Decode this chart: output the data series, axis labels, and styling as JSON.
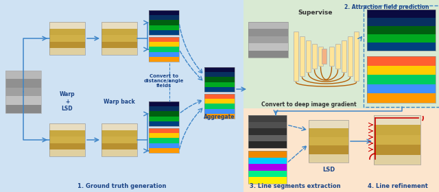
{
  "bg_left": "#cfe2f3",
  "bg_right_top": "#d9ead3",
  "bg_right_bot": "#fce5cd",
  "label1": "1. Ground truth generation",
  "label2": "2. Attraction field prediction",
  "label3": "3. Line segments extraction",
  "label4": "4. Line refinement",
  "label_supervise": "Supervise",
  "label_warp": "Warp\n+\nLSD",
  "label_warpback": "Warp back",
  "label_convert": "Convert to\ndistance/angle\nfields",
  "label_aggregate": "Aggregate",
  "label_convert_grad": "Convert to deep image gradient",
  "label_lsd": "LSD",
  "arrow_color": "#3d85c8",
  "text_color_dark": "#1c4587",
  "unet_skip_color": "#b45f06",
  "red_color": "#cc0000",
  "room_colors": [
    "#e8ddc0",
    "#c8a840",
    "#d0b048",
    "#b89030",
    "#e0d0a0"
  ],
  "gray_colors": [
    "#b8b8b8",
    "#909090",
    "#a0a0a0",
    "#c0c0c0",
    "#888888"
  ],
  "dist_colors": [
    "#0a0a40",
    "#083060",
    "#006010",
    "#00aa20",
    "#004080"
  ],
  "angle_colors": [
    "#ff6030",
    "#ffcc00",
    "#00cc60",
    "#4090ff",
    "#ff9900"
  ],
  "grad_dark_colors": [
    "#404040",
    "#505050",
    "#303030",
    "#606060",
    "#282828"
  ],
  "angle2_colors": [
    "#ee8800",
    "#00ccff",
    "#aa00ee",
    "#00ee88",
    "#ffee00"
  ],
  "unet_yellow": "#ffe599",
  "unet_orange": "#f4b183",
  "unet_border": "#aaaaaa"
}
